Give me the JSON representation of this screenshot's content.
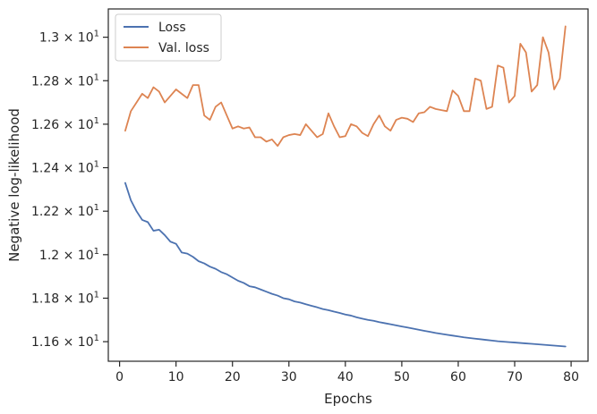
{
  "chart_data": {
    "type": "line",
    "title": "",
    "xlabel": "Epochs",
    "ylabel": "Negative log-likelihood",
    "xlim": [
      -2,
      83
    ],
    "ylim": [
      11.51,
      13.13
    ],
    "x_ticks": [
      0,
      10,
      20,
      30,
      40,
      50,
      60,
      70,
      80
    ],
    "x_tick_labels": [
      "0",
      "10",
      "20",
      "30",
      "40",
      "50",
      "60",
      "70",
      "80"
    ],
    "y_ticks": [
      11.6,
      11.8,
      12.0,
      12.2,
      12.4,
      12.6,
      12.8,
      13.0
    ],
    "y_tick_labels": [
      {
        "base": "1.16",
        "mid": " × 10",
        "exp": "1"
      },
      {
        "base": "1.18",
        "mid": " × 10",
        "exp": "1"
      },
      {
        "base": "1.2",
        "mid": " × 10",
        "exp": "1"
      },
      {
        "base": "1.22",
        "mid": " × 10",
        "exp": "1"
      },
      {
        "base": "1.24",
        "mid": " × 10",
        "exp": "1"
      },
      {
        "base": "1.26",
        "mid": " × 10",
        "exp": "1"
      },
      {
        "base": "1.28",
        "mid": " × 10",
        "exp": "1"
      },
      {
        "base": "1.3",
        "mid": " × 10",
        "exp": "1"
      }
    ],
    "grid": false,
    "legend_position": "top-left",
    "x": [
      1,
      2,
      3,
      4,
      5,
      6,
      7,
      8,
      9,
      10,
      11,
      12,
      13,
      14,
      15,
      16,
      17,
      18,
      19,
      20,
      21,
      22,
      23,
      24,
      25,
      26,
      27,
      28,
      29,
      30,
      31,
      32,
      33,
      34,
      35,
      36,
      37,
      38,
      39,
      40,
      41,
      42,
      43,
      44,
      45,
      46,
      47,
      48,
      49,
      50,
      51,
      52,
      53,
      54,
      55,
      56,
      57,
      58,
      59,
      60,
      61,
      62,
      63,
      64,
      65,
      66,
      67,
      68,
      69,
      70,
      71,
      72,
      73,
      74,
      75,
      76,
      77,
      78,
      79
    ],
    "series": [
      {
        "name": "Loss",
        "color": "#4c72b0",
        "values": [
          12.33,
          12.25,
          12.2,
          12.16,
          12.15,
          12.11,
          12.115,
          12.09,
          12.06,
          12.05,
          12.01,
          12.005,
          11.99,
          11.97,
          11.96,
          11.945,
          11.935,
          11.92,
          11.91,
          11.895,
          11.88,
          11.87,
          11.855,
          11.85,
          11.84,
          11.83,
          11.82,
          11.812,
          11.8,
          11.795,
          11.785,
          11.78,
          11.772,
          11.765,
          11.758,
          11.75,
          11.745,
          11.738,
          11.732,
          11.725,
          11.72,
          11.712,
          11.706,
          11.7,
          11.696,
          11.69,
          11.685,
          11.68,
          11.675,
          11.67,
          11.665,
          11.66,
          11.655,
          11.65,
          11.645,
          11.64,
          11.636,
          11.632,
          11.628,
          11.624,
          11.62,
          11.617,
          11.614,
          11.611,
          11.608,
          11.605,
          11.602,
          11.6,
          11.598,
          11.596,
          11.594,
          11.592,
          11.59,
          11.588,
          11.586,
          11.584,
          11.582,
          11.58,
          11.578
        ]
      },
      {
        "name": "Val. loss",
        "color": "#dd8452",
        "values": [
          12.57,
          12.66,
          12.7,
          12.74,
          12.72,
          12.77,
          12.75,
          12.7,
          12.73,
          12.76,
          12.74,
          12.72,
          12.78,
          12.78,
          12.64,
          12.62,
          12.68,
          12.7,
          12.64,
          12.58,
          12.59,
          12.58,
          12.585,
          12.54,
          12.54,
          12.52,
          12.53,
          12.5,
          12.54,
          12.55,
          12.555,
          12.55,
          12.6,
          12.57,
          12.54,
          12.555,
          12.65,
          12.59,
          12.54,
          12.545,
          12.6,
          12.59,
          12.56,
          12.545,
          12.6,
          12.64,
          12.59,
          12.57,
          12.62,
          12.63,
          12.625,
          12.61,
          12.65,
          12.655,
          12.68,
          12.67,
          12.665,
          12.66,
          12.755,
          12.73,
          12.66,
          12.66,
          12.81,
          12.8,
          12.67,
          12.68,
          12.87,
          12.86,
          12.7,
          12.73,
          12.97,
          12.93,
          12.75,
          12.78,
          13.0,
          12.93,
          12.76,
          12.81,
          13.05
        ]
      }
    ]
  }
}
